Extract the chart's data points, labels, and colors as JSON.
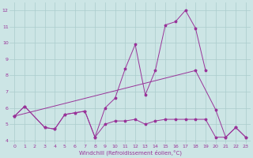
{
  "xlabel": "Windchill (Refroidissement éolien,°C)",
  "x": [
    0,
    1,
    2,
    3,
    4,
    5,
    6,
    7,
    8,
    9,
    10,
    11,
    12,
    13,
    14,
    15,
    16,
    17,
    18,
    19,
    20,
    21,
    22,
    23
  ],
  "series1": [
    5.5,
    6.1,
    4.8,
    4.7,
    5.6,
    5.7,
    5.8,
    4.2,
    5.0,
    5.2,
    5.2,
    5.3,
    5.0,
    5.2,
    5.3,
    5.3,
    5.3,
    5.3,
    5.3,
    4.2,
    4.2,
    4.8,
    4.2
  ],
  "series1_x": [
    0,
    1,
    3,
    4,
    5,
    6,
    7,
    8,
    9,
    10,
    11,
    12,
    13,
    14,
    15,
    16,
    17,
    18,
    19,
    20,
    21,
    22,
    23
  ],
  "series2": [
    5.5,
    6.1,
    4.8,
    4.7,
    5.6,
    5.7,
    5.8,
    4.2,
    6.0,
    6.6,
    8.4,
    9.9,
    6.8,
    8.3,
    11.1,
    11.3,
    12.0,
    10.9,
    8.3
  ],
  "series2_x": [
    0,
    1,
    3,
    4,
    5,
    6,
    7,
    8,
    9,
    10,
    11,
    12,
    13,
    14,
    15,
    16,
    17,
    18,
    19
  ],
  "series3": [
    5.5,
    8.3,
    5.9,
    4.2,
    4.8,
    4.2
  ],
  "series3_x": [
    0,
    18,
    20,
    21,
    22,
    23
  ],
  "line_color": "#993399",
  "bg_color": "#cce5e5",
  "grid_color": "#aacccc",
  "tick_label_color": "#993399",
  "axis_label_color": "#993399",
  "ylim": [
    3.8,
    12.5
  ],
  "yticks": [
    4,
    5,
    6,
    7,
    8,
    9,
    10,
    11,
    12
  ],
  "xticks": [
    0,
    1,
    2,
    3,
    4,
    5,
    6,
    7,
    8,
    9,
    10,
    11,
    12,
    13,
    14,
    15,
    16,
    17,
    18,
    19,
    20,
    21,
    22,
    23
  ],
  "xlim": [
    -0.5,
    23.5
  ]
}
